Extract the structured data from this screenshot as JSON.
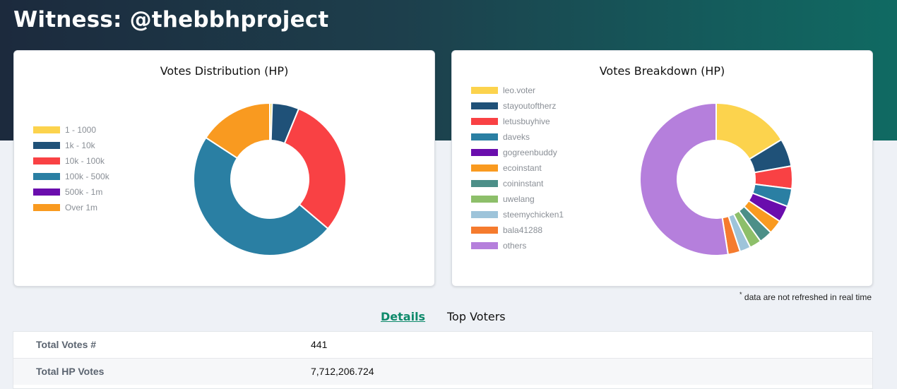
{
  "page": {
    "title": "Witness: @thebbhproject"
  },
  "distribution": {
    "title": "Votes Distribution (HP)",
    "legend": [
      {
        "label": "1 - 1000",
        "color": "#fcd34d",
        "value": 0.5
      },
      {
        "label": "1k - 10k",
        "color": "#1f5178",
        "value": 5.7
      },
      {
        "label": "10k - 100k",
        "color": "#f94144",
        "value": 30.0
      },
      {
        "label": "100k - 500k",
        "color": "#2a7fa3",
        "value": 48.0
      },
      {
        "label": "500k - 1m",
        "color": "#6a0dad",
        "value": 0.0
      },
      {
        "label": "Over 1m",
        "color": "#f99a20",
        "value": 15.8
      }
    ]
  },
  "breakdown": {
    "title": "Votes Breakdown (HP)",
    "legend": [
      {
        "label": "leo.voter",
        "color": "#fcd34d",
        "value": 16.3
      },
      {
        "label": "stayoutoftherz",
        "color": "#1f5178",
        "value": 5.9
      },
      {
        "label": "letusbuyhive",
        "color": "#f94144",
        "value": 4.8
      },
      {
        "label": "daveks",
        "color": "#2a7fa3",
        "value": 3.8
      },
      {
        "label": "gogreenbuddy",
        "color": "#6a0dad",
        "value": 3.5
      },
      {
        "label": "ecoinstant",
        "color": "#f99a20",
        "value": 3.0
      },
      {
        "label": "coininstant",
        "color": "#4c8f88",
        "value": 2.8
      },
      {
        "label": "uwelang",
        "color": "#8dbf6a",
        "value": 2.5
      },
      {
        "label": "steemychicken1",
        "color": "#9ec4da",
        "value": 2.3
      },
      {
        "label": "bala41288",
        "color": "#f57b2e",
        "value": 2.6
      },
      {
        "label": "others",
        "color": "#b57fdc",
        "value": 52.5
      }
    ]
  },
  "note": {
    "marker": "*",
    "text": " data are not refreshed in real time"
  },
  "tabs": {
    "details": "Details",
    "top_voters": "Top Voters"
  },
  "details": [
    {
      "label": "Total Votes #",
      "value": "441"
    },
    {
      "label": "Total HP Votes",
      "value": "7,712,206.724"
    }
  ]
}
